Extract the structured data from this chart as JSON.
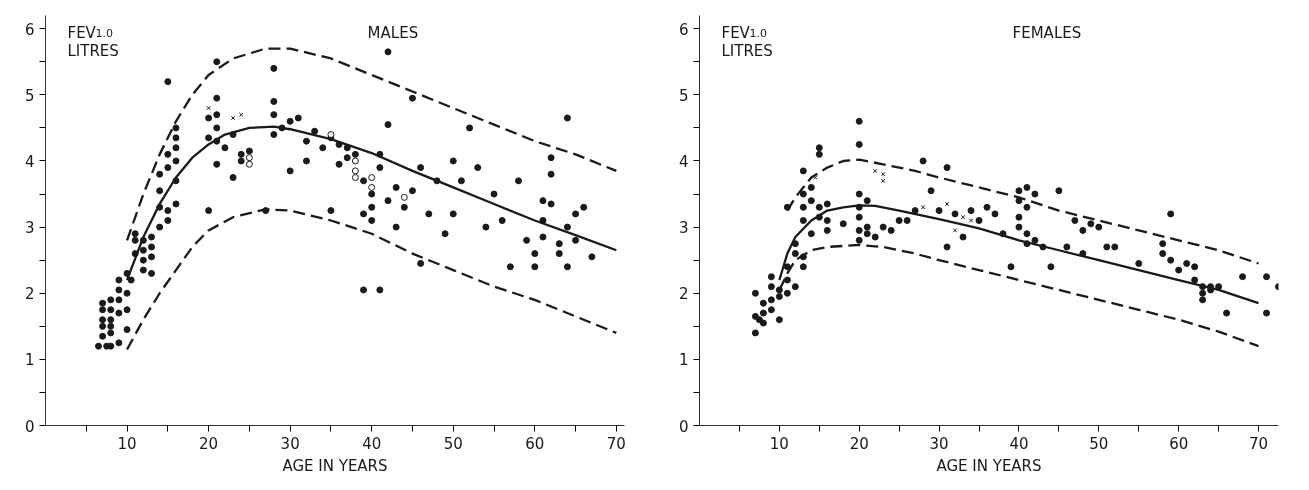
{
  "chart_data": [
    {
      "type": "scatter",
      "title": "MALES",
      "ylabel": "FEV$_{1.0}$\nLITRES",
      "xlabel": "AGE IN YEARS",
      "xlim": [
        0,
        71
      ],
      "ylim": [
        0,
        6.2
      ],
      "xticks": [
        {
          "value": 5,
          "label": null
        },
        10,
        {
          "value": 15,
          "label": null
        },
        20,
        {
          "value": 25,
          "label": null
        },
        30,
        {
          "value": 35,
          "label": null
        },
        40,
        {
          "value": 45,
          "label": null
        },
        50,
        {
          "value": 55,
          "label": null
        },
        60,
        {
          "value": 65,
          "label": null
        },
        70
      ],
      "yticks": [
        0,
        {
          "value": 0.5,
          "label": null
        },
        1,
        {
          "value": 1.5,
          "label": null
        },
        2,
        {
          "value": 2.5,
          "label": null
        },
        3,
        {
          "value": 3.5,
          "label": null
        },
        4,
        {
          "value": 4.5,
          "label": null
        },
        5,
        {
          "value": 5.5,
          "label": null
        },
        6
      ],
      "series": [
        {
          "marker": "circle",
          "color": "#1a1a1a",
          "x": [
            6.5,
            7,
            7,
            7,
            7,
            7,
            7.5,
            8,
            8,
            8,
            8,
            8,
            8,
            9,
            9,
            9,
            9,
            9,
            10,
            10,
            10,
            10,
            10.5,
            11,
            11,
            11,
            12,
            12,
            12,
            12,
            13,
            13,
            13,
            13,
            14,
            14,
            14,
            14,
            15,
            15,
            15,
            15,
            15,
            16,
            16,
            16,
            16,
            16,
            16,
            20,
            20,
            20,
            21,
            21,
            21,
            21,
            21,
            21,
            22,
            23,
            23,
            24,
            24,
            25,
            27,
            28,
            28,
            28,
            28,
            29,
            30,
            30,
            31,
            32,
            32,
            33,
            34,
            35,
            35,
            36,
            36,
            37,
            37,
            38,
            39,
            39,
            39,
            40,
            40,
            40,
            41,
            41,
            41,
            42,
            42,
            42,
            43,
            43,
            44,
            45,
            45,
            46,
            46,
            47,
            48,
            49,
            50,
            50,
            51,
            52,
            53,
            54,
            55,
            56,
            57,
            58,
            59,
            60,
            60,
            61,
            61,
            61,
            62,
            62,
            62,
            63,
            63,
            64,
            64,
            64,
            65,
            65,
            66,
            67
          ],
          "values": [
            1.2,
            1.35,
            1.5,
            1.6,
            1.75,
            1.85,
            1.2,
            1.2,
            1.4,
            1.5,
            1.6,
            1.75,
            1.9,
            1.25,
            1.7,
            1.9,
            2.05,
            2.2,
            1.45,
            1.75,
            2.0,
            2.3,
            2.2,
            2.6,
            2.8,
            2.9,
            2.35,
            2.5,
            2.65,
            2.8,
            2.3,
            2.55,
            2.7,
            2.85,
            3.0,
            3.3,
            3.55,
            3.8,
            3.1,
            3.25,
            3.9,
            4.1,
            5.2,
            3.35,
            3.7,
            4.0,
            4.2,
            4.35,
            4.5,
            3.25,
            4.35,
            4.65,
            3.95,
            4.3,
            4.5,
            4.7,
            4.95,
            5.5,
            4.2,
            4.4,
            3.75,
            4.1,
            4.0,
            4.15,
            3.25,
            4.7,
            4.9,
            5.4,
            4.4,
            4.5,
            3.85,
            4.6,
            4.65,
            4.3,
            4.0,
            4.45,
            4.2,
            4.35,
            3.25,
            4.25,
            3.95,
            4.05,
            4.2,
            4.1,
            3.7,
            3.2,
            2.05,
            3.5,
            3.3,
            3.1,
            2.05,
            4.1,
            3.9,
            4.55,
            3.4,
            5.65,
            3.6,
            3.0,
            3.3,
            3.55,
            4.95,
            3.9,
            2.45,
            3.2,
            3.7,
            2.9,
            4.0,
            3.2,
            3.7,
            4.5,
            3.9,
            3.0,
            3.5,
            3.1,
            2.4,
            3.7,
            2.8,
            2.6,
            2.4,
            3.1,
            2.85,
            3.4,
            4.05,
            3.8,
            3.35,
            2.75,
            2.6,
            4.65,
            3.0,
            2.4,
            3.2,
            2.8,
            3.3,
            2.55
          ]
        },
        {
          "marker": "circle",
          "color": "#ffffff",
          "x": [
            25,
            25,
            35,
            38,
            38,
            38,
            40,
            40,
            44
          ],
          "values": [
            4.05,
            3.95,
            4.4,
            4.0,
            3.85,
            3.75,
            3.75,
            3.6,
            3.45
          ]
        },
        {
          "marker": "cross",
          "color": "#1a1a1a",
          "x": [
            20,
            23,
            24
          ],
          "values": [
            4.8,
            4.65,
            4.7
          ]
        },
        {
          "type": "line",
          "line_style": "solid",
          "color": "#1a1a1a",
          "x": [
            10,
            12,
            14,
            16,
            18,
            20,
            22,
            25,
            28,
            30,
            35,
            40,
            45,
            50,
            55,
            60,
            65,
            70
          ],
          "values": [
            2.2,
            2.85,
            3.35,
            3.75,
            4.05,
            4.25,
            4.4,
            4.5,
            4.52,
            4.48,
            4.33,
            4.12,
            3.85,
            3.6,
            3.35,
            3.1,
            2.88,
            2.65
          ]
        },
        {
          "type": "line",
          "line_style": "dashed",
          "color": "#1a1a1a",
          "x": [
            10,
            12,
            14,
            16,
            18,
            20,
            23,
            27,
            30,
            35,
            40,
            45,
            50,
            55,
            60,
            65,
            70
          ],
          "values": [
            2.8,
            3.5,
            4.1,
            4.6,
            5.0,
            5.3,
            5.55,
            5.7,
            5.7,
            5.55,
            5.3,
            5.05,
            4.8,
            4.55,
            4.3,
            4.1,
            3.85
          ]
        },
        {
          "type": "line",
          "line_style": "dashed",
          "color": "#1a1a1a",
          "x": [
            10,
            12,
            14,
            16,
            18,
            20,
            23,
            27,
            30,
            35,
            40,
            45,
            50,
            55,
            60,
            65,
            70
          ],
          "values": [
            1.15,
            1.6,
            2.0,
            2.35,
            2.7,
            2.95,
            3.15,
            3.27,
            3.25,
            3.1,
            2.9,
            2.6,
            2.35,
            2.1,
            1.9,
            1.65,
            1.4
          ]
        }
      ]
    },
    {
      "type": "scatter",
      "title": "FEMALES",
      "ylabel": "FEV$_{1.0}$\nLITRES",
      "xlabel": "AGE IN YEARS",
      "xlim": [
        0,
        72.5
      ],
      "ylim": [
        0,
        6.2
      ],
      "xticks": [
        {
          "value": 5,
          "label": null
        },
        10,
        {
          "value": 15,
          "label": null
        },
        20,
        {
          "value": 25,
          "label": null
        },
        30,
        {
          "value": 35,
          "label": null
        },
        40,
        {
          "value": 45,
          "label": null
        },
        50,
        {
          "value": 55,
          "label": null
        },
        60,
        {
          "value": 65,
          "label": null
        },
        70
      ],
      "yticks": [
        0,
        {
          "value": 0.5,
          "label": null
        },
        1,
        {
          "value": 1.5,
          "label": null
        },
        2,
        {
          "value": 2.5,
          "label": null
        },
        3,
        {
          "value": 3.5,
          "label": null
        },
        4,
        {
          "value": 4.5,
          "label": null
        },
        5,
        {
          "value": 5.5,
          "label": null
        },
        6
      ],
      "series": [
        {
          "marker": "circle",
          "color": "#1a1a1a",
          "x": [
            7,
            7,
            7,
            7.5,
            8,
            8,
            8,
            9,
            9,
            9,
            9,
            10,
            10,
            10,
            11,
            11,
            11,
            11,
            12,
            12,
            12,
            13,
            13,
            13,
            13,
            13,
            13,
            14,
            14,
            14,
            15,
            15,
            15,
            15,
            16,
            16,
            16,
            18,
            20,
            20,
            20,
            20,
            20,
            20,
            20,
            21,
            21,
            21,
            22,
            23,
            24,
            25,
            26,
            27,
            28,
            29,
            30,
            31,
            31,
            32,
            33,
            34,
            35,
            36,
            37,
            38,
            39,
            40,
            40,
            40,
            40,
            41,
            41,
            41,
            41,
            42,
            42,
            43,
            44,
            45,
            46,
            47,
            48,
            48,
            49,
            50,
            51,
            52,
            55,
            58,
            58,
            59,
            59,
            60,
            61,
            62,
            62,
            63,
            63,
            63,
            64,
            64,
            65,
            66,
            68,
            71,
            71,
            72.5
          ],
          "values": [
            1.4,
            1.65,
            2.0,
            1.6,
            1.55,
            1.7,
            1.85,
            1.75,
            1.9,
            2.1,
            2.25,
            1.6,
            1.95,
            2.05,
            2.0,
            2.2,
            2.4,
            3.3,
            2.1,
            2.6,
            2.75,
            2.4,
            2.55,
            3.1,
            3.3,
            3.5,
            3.85,
            2.9,
            3.4,
            3.6,
            3.15,
            3.3,
            4.1,
            4.2,
            2.95,
            3.1,
            3.35,
            3.05,
            2.8,
            2.95,
            3.15,
            3.3,
            3.5,
            4.25,
            4.6,
            3.4,
            2.9,
            3.0,
            2.85,
            3.0,
            2.95,
            3.1,
            3.1,
            3.25,
            4.0,
            3.55,
            3.25,
            2.7,
            3.9,
            3.2,
            2.85,
            3.25,
            3.1,
            3.3,
            3.2,
            2.9,
            2.4,
            3.0,
            3.15,
            3.4,
            3.55,
            2.75,
            2.9,
            3.3,
            3.6,
            2.8,
            3.5,
            2.7,
            2.4,
            3.55,
            2.7,
            3.1,
            2.95,
            2.6,
            3.05,
            3.0,
            2.7,
            2.7,
            2.45,
            2.75,
            2.6,
            3.2,
            2.5,
            2.35,
            2.45,
            2.4,
            2.2,
            2.0,
            2.1,
            1.9,
            2.1,
            2.05,
            2.1,
            1.7,
            2.25,
            2.25,
            1.7,
            2.1
          ]
        },
        {
          "marker": "cross",
          "color": "#1a1a1a",
          "x": [
            14.5,
            22,
            23,
            23,
            28,
            31,
            32,
            33,
            34
          ],
          "values": [
            3.75,
            3.85,
            3.8,
            3.7,
            3.3,
            3.35,
            2.95,
            3.15,
            3.1
          ]
        },
        {
          "type": "line",
          "line_style": "solid",
          "color": "#1a1a1a",
          "x": [
            10,
            11,
            12,
            14,
            16,
            18,
            20,
            22,
            25,
            30,
            35,
            40,
            45,
            50,
            55,
            60,
            65,
            70
          ],
          "values": [
            2.2,
            2.6,
            2.85,
            3.1,
            3.25,
            3.3,
            3.33,
            3.32,
            3.25,
            3.12,
            2.98,
            2.8,
            2.65,
            2.5,
            2.35,
            2.2,
            2.05,
            1.85
          ]
        },
        {
          "type": "line",
          "line_style": "dashed",
          "color": "#1a1a1a",
          "x": [
            11,
            12,
            14,
            16,
            18,
            20,
            23,
            27,
            30,
            35,
            40,
            45,
            50,
            55,
            60,
            65,
            70
          ],
          "values": [
            3.25,
            3.45,
            3.75,
            3.9,
            4.0,
            4.02,
            3.95,
            3.85,
            3.75,
            3.6,
            3.45,
            3.25,
            3.1,
            2.95,
            2.8,
            2.65,
            2.45
          ]
        },
        {
          "type": "line",
          "line_style": "dashed",
          "color": "#1a1a1a",
          "x": [
            10,
            11,
            12,
            14,
            16,
            20,
            23,
            27,
            30,
            35,
            40,
            45,
            50,
            55,
            60,
            65,
            70
          ],
          "values": [
            2.05,
            2.3,
            2.5,
            2.65,
            2.7,
            2.73,
            2.7,
            2.6,
            2.5,
            2.35,
            2.2,
            2.05,
            1.9,
            1.75,
            1.6,
            1.42,
            1.2
          ]
        }
      ]
    }
  ]
}
